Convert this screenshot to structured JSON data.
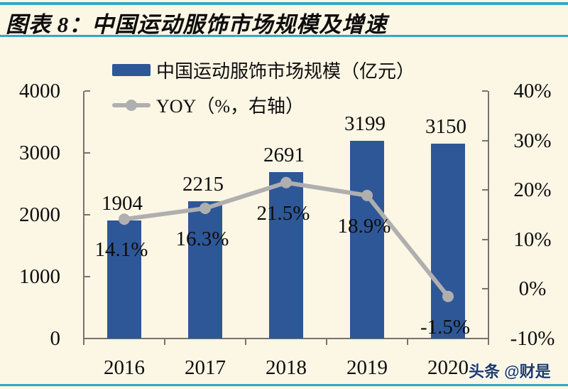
{
  "title": "图表 8：中国运动服饰市场规模及增速",
  "watermark": "头条 @财是",
  "colors": {
    "background": "#FCF6E5",
    "accent_line": "#33A7C8",
    "bar": "#2E5797",
    "line": "#AFAFAF",
    "axis": "#75756D",
    "text": "#0D0D0D",
    "watermark_text": "#1E3C68"
  },
  "chart_data": {
    "type": "bar+line combo",
    "categories": [
      "2016",
      "2017",
      "2018",
      "2019",
      "2020"
    ],
    "series": [
      {
        "name": "中国运动服饰市场规模（亿元）",
        "type": "bar",
        "axis": "left",
        "values": [
          1904,
          2215,
          2691,
          3199,
          3150
        ],
        "data_labels": [
          "1904",
          "2215",
          "2691",
          "3199",
          "3150"
        ]
      },
      {
        "name": "YOY（%，右轴）",
        "type": "line",
        "axis": "right",
        "values": [
          14.1,
          16.3,
          21.5,
          18.9,
          -1.5
        ],
        "data_labels": [
          "14.1%",
          "16.3%",
          "21.5%",
          "18.9%",
          "-1.5%"
        ]
      }
    ],
    "left_axis": {
      "min": 0,
      "max": 4000,
      "ticks": [
        "0",
        "1000",
        "2000",
        "3000",
        "4000"
      ]
    },
    "right_axis": {
      "min": -10,
      "max": 40,
      "ticks": [
        "-10%",
        "0%",
        "10%",
        "20%",
        "30%",
        "40%"
      ]
    },
    "legend_position": "top",
    "grid": "off"
  }
}
